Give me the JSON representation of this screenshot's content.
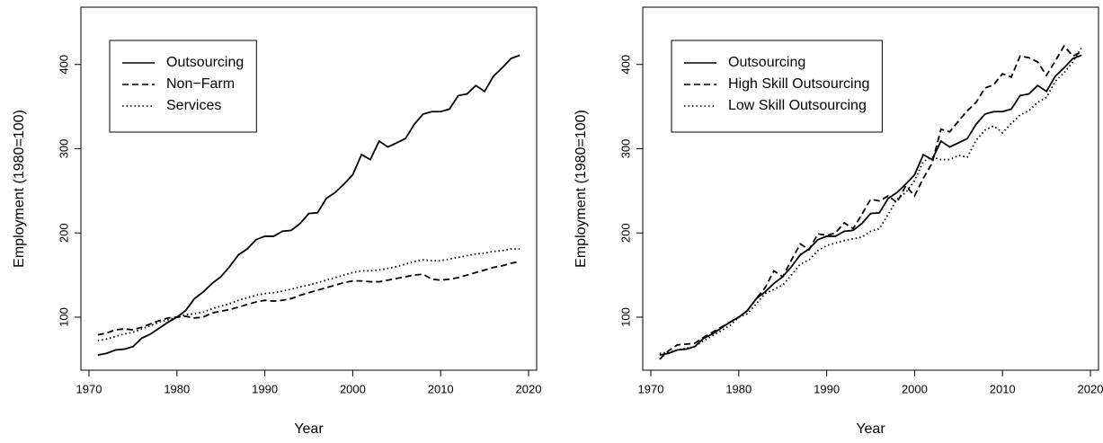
{
  "chart_data": [
    {
      "type": "line",
      "xlabel": "Year",
      "ylabel": "Employment (1980=100)",
      "legend": "topleft",
      "xlim": [
        1969.08,
        2020.92
      ],
      "xticks": [
        1970,
        1980,
        1990,
        2000,
        2010,
        2020
      ],
      "ylim": [
        37,
        468
      ],
      "yticks": [
        100,
        200,
        300,
        400
      ],
      "x": [
        1971,
        1972,
        1973,
        1974,
        1975,
        1976,
        1977,
        1978,
        1979,
        1980,
        1981,
        1982,
        1983,
        1984,
        1985,
        1986,
        1987,
        1988,
        1989,
        1990,
        1991,
        1992,
        1993,
        1994,
        1995,
        1996,
        1997,
        1998,
        1999,
        2000,
        2001,
        2002,
        2003,
        2004,
        2005,
        2006,
        2007,
        2008,
        2009,
        2010,
        2011,
        2012,
        2013,
        2014,
        2015,
        2016,
        2017,
        2018,
        2019
      ],
      "series": [
        {
          "name": "Outsourcing",
          "color": "#000000",
          "dash": "solid",
          "values": [
            55,
            57,
            61,
            62,
            65,
            75,
            80,
            87,
            94,
            100,
            108,
            122,
            130,
            140,
            148,
            160,
            174,
            181,
            192,
            196,
            196,
            202,
            203,
            211,
            223,
            224,
            241,
            248,
            258,
            269,
            293,
            287,
            309,
            302,
            307,
            312,
            329,
            341,
            344,
            344,
            347,
            363,
            365,
            375,
            368,
            386,
            396,
            407,
            411
          ]
        },
        {
          "name": "Non−Farm",
          "color": "#000000",
          "dash": "dashed",
          "values": [
            79,
            81,
            85,
            86,
            85,
            88,
            92,
            96,
            99,
            100,
            101,
            99,
            100,
            105,
            107,
            109,
            112,
            115,
            118,
            120,
            119,
            120,
            122,
            126,
            129,
            132,
            135,
            138,
            141,
            143,
            143,
            142,
            142,
            144,
            146,
            148,
            150,
            151,
            145,
            144,
            145,
            147,
            150,
            153,
            156,
            159,
            161,
            164,
            166
          ]
        },
        {
          "name": "Services",
          "color": "#000000",
          "dash": "dotted",
          "values": [
            72,
            74,
            77,
            80,
            82,
            86,
            90,
            94,
            97,
            100,
            103,
            104,
            106,
            110,
            113,
            116,
            120,
            123,
            126,
            128,
            129,
            131,
            133,
            136,
            138,
            141,
            144,
            147,
            150,
            153,
            155,
            155,
            156,
            158,
            160,
            163,
            166,
            168,
            167,
            167,
            169,
            171,
            173,
            175,
            176,
            178,
            179,
            181,
            181
          ]
        }
      ]
    },
    {
      "type": "line",
      "xlabel": "Year",
      "ylabel": "Employment (1980=100)",
      "legend": "topleft",
      "xlim": [
        1969.08,
        2020.92
      ],
      "xticks": [
        1970,
        1980,
        1990,
        2000,
        2010,
        2020
      ],
      "ylim": [
        37,
        468
      ],
      "yticks": [
        100,
        200,
        300,
        400
      ],
      "x": [
        1971,
        1972,
        1973,
        1974,
        1975,
        1976,
        1977,
        1978,
        1979,
        1980,
        1981,
        1982,
        1983,
        1984,
        1985,
        1986,
        1987,
        1988,
        1989,
        1990,
        1991,
        1992,
        1993,
        1994,
        1995,
        1996,
        1997,
        1998,
        1999,
        2000,
        2001,
        2002,
        2003,
        2004,
        2005,
        2006,
        2007,
        2008,
        2009,
        2010,
        2011,
        2012,
        2013,
        2014,
        2015,
        2016,
        2017,
        2018,
        2019
      ],
      "series": [
        {
          "name": "Outsourcing",
          "color": "#000000",
          "dash": "solid",
          "values": [
            55,
            57,
            61,
            62,
            65,
            75,
            80,
            87,
            94,
            100,
            108,
            122,
            130,
            140,
            148,
            160,
            174,
            181,
            192,
            196,
            196,
            202,
            203,
            211,
            223,
            224,
            241,
            248,
            258,
            269,
            293,
            287,
            309,
            302,
            307,
            312,
            329,
            341,
            344,
            344,
            347,
            363,
            365,
            375,
            368,
            386,
            396,
            407,
            411
          ]
        },
        {
          "name": "High Skill Outsourcing",
          "color": "#000000",
          "dash": "dashed",
          "values": [
            50,
            60,
            67,
            68,
            69,
            76,
            82,
            88,
            94,
            100,
            108,
            122,
            135,
            155,
            148,
            168,
            187,
            180,
            199,
            197,
            200,
            212,
            205,
            222,
            240,
            238,
            244,
            236,
            256,
            244,
            265,
            283,
            323,
            320,
            333,
            345,
            355,
            372,
            376,
            389,
            385,
            410,
            408,
            403,
            387,
            404,
            422,
            410,
            415
          ]
        },
        {
          "name": "Low Skill Outsourcing",
          "color": "#000000",
          "dash": "dotted",
          "values": [
            57,
            58,
            61,
            63,
            65,
            72,
            78,
            84,
            90,
            100,
            104,
            116,
            128,
            133,
            138,
            150,
            163,
            168,
            179,
            185,
            188,
            191,
            193,
            195,
            202,
            205,
            222,
            240,
            248,
            262,
            285,
            290,
            287,
            287,
            292,
            290,
            310,
            322,
            327,
            319,
            330,
            340,
            345,
            355,
            361,
            380,
            390,
            403,
            420
          ]
        }
      ]
    }
  ]
}
